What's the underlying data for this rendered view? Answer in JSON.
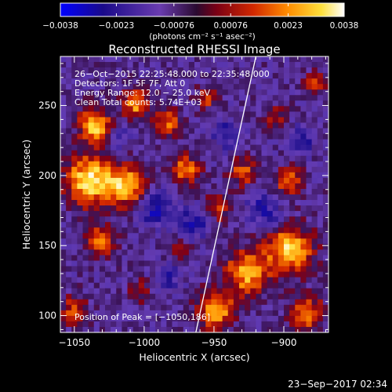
{
  "chart_data": {
    "type": "heatmap",
    "title": "Reconstructed RHESSI Image",
    "xlabel": "Heliocentric X (arcsec)",
    "ylabel": "Heliocentric Y (arcsec)",
    "xlim": [
      -1060,
      -868
    ],
    "ylim": [
      88,
      285
    ],
    "x_ticks": [
      -1050,
      -1000,
      -950,
      -900
    ],
    "x_tick_labels": [
      "−1050",
      "−1000",
      "−950",
      "−900"
    ],
    "y_ticks": [
      100,
      150,
      200,
      250
    ],
    "y_tick_labels": [
      "100",
      "150",
      "200",
      "250"
    ],
    "colorbar": {
      "min": -0.0038,
      "max": 0.0038,
      "tick_values": [
        -0.0038,
        -0.0023,
        -0.00076,
        0.00076,
        0.0023,
        0.0038
      ],
      "tick_labels": [
        "−0.0038",
        "−0.0023",
        "−0.00076",
        "0.00076",
        "0.0023",
        "0.0038"
      ],
      "unit_label": "(photons cm⁻² s⁻¹ asec⁻²)"
    },
    "annotations": [
      "26−Oct−2015 22:25:48.000 to 22:35:48.000",
      "Detectors: 1F 5F 7F, Att 0",
      "Energy Range: 12.0 − 25.0 keV",
      "Clean     Total counts: 5.74E+03"
    ],
    "peak_label": "Position of Peak = [−1050,186]",
    "limb_line": {
      "x": [
        -963,
        -920
      ],
      "y": [
        88,
        285
      ]
    },
    "timestamp": "23−Sep−2017 02:34",
    "colors": {
      "background": "#000000",
      "cmap": [
        "#0000ff",
        "#1a0a6e",
        "#40208a",
        "#6a3cb0",
        "#5a2070",
        "#7a0014",
        "#c81e00",
        "#ff6400",
        "#ffb400",
        "#ffff3c",
        "#ffffff"
      ]
    }
  }
}
